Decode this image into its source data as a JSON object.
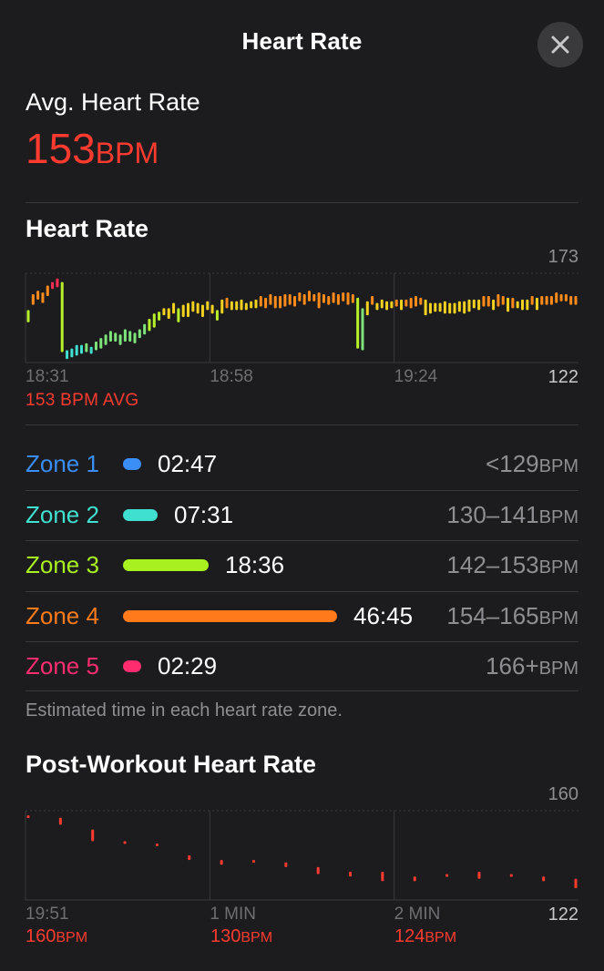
{
  "header": {
    "title": "Heart Rate",
    "close_icon": "close-icon"
  },
  "summary": {
    "label": "Avg. Heart Rate",
    "value": "153",
    "unit": "BPM",
    "color": "#ff3b30"
  },
  "heart_rate_section": {
    "title": "Heart Rate",
    "avg_caption": "153 BPM AVG"
  },
  "zones": [
    {
      "name": "Zone 1",
      "time": "02:47",
      "range": "<129",
      "unit": "BPM",
      "color": "#3a8ef6",
      "fraction": 0.036
    },
    {
      "name": "Zone 2",
      "time": "07:31",
      "range": "130–141",
      "unit": "BPM",
      "color": "#40e0d0",
      "fraction": 0.097
    },
    {
      "name": "Zone 3",
      "time": "18:36",
      "range": "142–153",
      "unit": "BPM",
      "color": "#a8f020",
      "fraction": 0.239
    },
    {
      "name": "Zone 4",
      "time": "46:45",
      "range": "154–165",
      "unit": "BPM",
      "color": "#ff7a1a",
      "fraction": 0.6
    },
    {
      "name": "Zone 5",
      "time": "02:29",
      "range": "166+",
      "unit": "BPM",
      "color": "#ff2d6f",
      "fraction": 0.032
    }
  ],
  "zones_footnote": "Estimated time in each heart rate zone.",
  "post_workout": {
    "title": "Post-Workout Heart Rate",
    "readings": [
      {
        "value": "160",
        "unit": "BPM"
      },
      {
        "value": "130",
        "unit": "BPM"
      },
      {
        "value": "124",
        "unit": "BPM"
      }
    ]
  },
  "chart_data": [
    {
      "type": "bar",
      "title": "Heart Rate",
      "x_tick_labels": [
        "18:31",
        "18:58",
        "19:24"
      ],
      "y_tick_labels": [
        "173",
        "122"
      ],
      "ylim": [
        122,
        173
      ],
      "grid": true,
      "series": [
        {
          "values": [
            [
              145,
              152
            ],
            [
              155,
              161
            ],
            [
              158,
              163
            ],
            [
              156,
              162
            ],
            [
              160,
              166
            ],
            [
              164,
              168
            ],
            [
              165,
              170
            ],
            [
              128,
              168
            ],
            [
              124,
              129
            ],
            [
              125,
              130
            ],
            [
              126,
              132
            ],
            [
              127,
              132
            ],
            [
              128,
              133
            ],
            [
              127,
              131
            ],
            [
              129,
              134
            ],
            [
              130,
              136
            ],
            [
              132,
              138
            ],
            [
              134,
              140
            ],
            [
              134,
              139
            ],
            [
              132,
              138
            ],
            [
              134,
              141
            ],
            [
              134,
              140
            ],
            [
              133,
              139
            ],
            [
              136,
              141
            ],
            [
              138,
              144
            ],
            [
              140,
              147
            ],
            [
              142,
              150
            ],
            [
              146,
              151
            ],
            [
              149,
              153
            ],
            [
              147,
              153
            ],
            [
              150,
              156
            ],
            [
              145,
              153
            ],
            [
              148,
              155
            ],
            [
              148,
              156
            ],
            [
              151,
              157
            ],
            [
              150,
              156
            ],
            [
              148,
              155
            ],
            [
              152,
              157
            ],
            [
              150,
              155
            ],
            [
              146,
              152
            ],
            [
              150,
              158
            ],
            [
              153,
              159
            ],
            [
              152,
              157
            ],
            [
              152,
              157
            ],
            [
              152,
              158
            ],
            [
              152,
              156
            ],
            [
              153,
              157
            ],
            [
              153,
              158
            ],
            [
              154,
              160
            ],
            [
              153,
              159
            ],
            [
              155,
              161
            ],
            [
              153,
              160
            ],
            [
              153,
              160
            ],
            [
              154,
              161
            ],
            [
              155,
              161
            ],
            [
              154,
              160
            ],
            [
              157,
              162
            ],
            [
              155,
              161
            ],
            [
              157,
              163
            ],
            [
              157,
              161
            ],
            [
              153,
              162
            ],
            [
              156,
              161
            ],
            [
              155,
              160
            ],
            [
              156,
              162
            ],
            [
              155,
              161
            ],
            [
              157,
              162
            ],
            [
              155,
              162
            ],
            [
              156,
              161
            ],
            [
              130,
              159
            ],
            [
              129,
              153
            ],
            [
              149,
              157
            ],
            [
              155,
              160
            ],
            [
              152,
              156
            ],
            [
              153,
              158
            ],
            [
              152,
              157
            ],
            [
              153,
              157
            ],
            [
              154,
              158
            ],
            [
              152,
              158
            ],
            [
              154,
              158
            ],
            [
              153,
              159
            ],
            [
              154,
              160
            ],
            [
              155,
              159
            ],
            [
              149,
              158
            ],
            [
              150,
              156
            ],
            [
              151,
              156
            ],
            [
              151,
              156
            ],
            [
              150,
              157
            ],
            [
              150,
              156
            ],
            [
              150,
              156
            ],
            [
              151,
              157
            ],
            [
              150,
              157
            ],
            [
              151,
              158
            ],
            [
              153,
              158
            ],
            [
              152,
              158
            ],
            [
              154,
              160
            ],
            [
              154,
              160
            ],
            [
              152,
              158
            ],
            [
              154,
              161
            ],
            [
              155,
              160
            ],
            [
              151,
              159
            ],
            [
              153,
              159
            ],
            [
              153,
              157
            ],
            [
              152,
              158
            ],
            [
              152,
              158
            ],
            [
              155,
              160
            ],
            [
              152,
              159
            ],
            [
              155,
              160
            ],
            [
              155,
              160
            ],
            [
              155,
              160
            ],
            [
              156,
              162
            ],
            [
              157,
              161
            ],
            [
              157,
              161
            ],
            [
              155,
              160
            ],
            [
              155,
              160
            ]
          ]
        }
      ]
    },
    {
      "type": "bar",
      "title": "Post-Workout Heart Rate",
      "x_tick_labels": [
        "19:51",
        "1 MIN",
        "2 MIN"
      ],
      "y_tick_labels": [
        "160",
        "122"
      ],
      "ylim": [
        122,
        160
      ],
      "grid": true,
      "series": [
        {
          "values": [
            [
              157,
              158
            ],
            [
              154,
              157
            ],
            [
              147,
              152
            ],
            [
              146,
              147
            ],
            [
              145,
              146
            ],
            [
              139,
              141
            ],
            [
              137,
              139
            ],
            [
              138,
              139
            ],
            [
              136,
              138
            ],
            [
              133,
              136
            ],
            [
              132,
              134
            ],
            [
              130,
              134
            ],
            [
              130,
              132
            ],
            [
              132,
              133
            ],
            [
              131,
              134
            ],
            [
              132,
              133
            ],
            [
              130,
              132
            ],
            [
              127,
              131
            ]
          ]
        }
      ]
    }
  ]
}
